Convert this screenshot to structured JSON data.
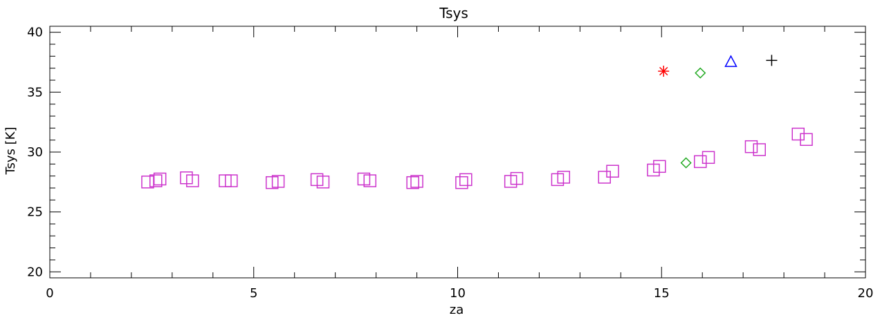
{
  "chart_data": {
    "type": "scatter",
    "title": "Tsys",
    "xlabel": "za",
    "ylabel": "Tsys [K]",
    "xlim": [
      0,
      20
    ],
    "ylim": [
      19.5,
      40.5
    ],
    "xticks": [
      0,
      5,
      10,
      15,
      20
    ],
    "xtick_labels": [
      "0",
      "5",
      "10",
      "15",
      "20"
    ],
    "yticks": [
      20,
      25,
      30,
      35,
      40
    ],
    "ytick_labels": [
      "20",
      "25",
      "30",
      "35",
      "40"
    ],
    "grid": false,
    "series": [
      {
        "marker": "square",
        "color": "#cc33cc",
        "x": [
          2.4,
          2.6,
          2.7,
          3.35,
          3.5,
          4.3,
          4.45,
          5.45,
          5.6,
          6.55,
          6.7,
          7.7,
          7.85,
          8.9,
          9.0,
          10.1,
          10.2,
          11.3,
          11.45,
          12.45,
          12.6,
          13.6,
          13.8,
          14.8,
          14.95,
          15.95,
          16.15,
          17.2,
          17.4,
          18.35,
          18.55
        ],
        "y": [
          27.5,
          27.6,
          27.75,
          27.85,
          27.6,
          27.6,
          27.6,
          27.45,
          27.55,
          27.7,
          27.5,
          27.75,
          27.6,
          27.45,
          27.55,
          27.45,
          27.7,
          27.55,
          27.8,
          27.7,
          27.9,
          27.9,
          28.4,
          28.5,
          28.8,
          29.2,
          29.55,
          30.45,
          30.2,
          31.5,
          31.05
        ]
      },
      {
        "marker": "diamond",
        "color": "#22aa22",
        "x": [
          15.6,
          15.95
        ],
        "y": [
          29.1,
          36.6
        ]
      },
      {
        "marker": "asterisk",
        "color": "#ff0000",
        "x": [
          15.05
        ],
        "y": [
          36.75
        ]
      },
      {
        "marker": "triangle",
        "color": "#0000ff",
        "x": [
          16.7
        ],
        "y": [
          37.55
        ]
      },
      {
        "marker": "plus",
        "color": "#000000",
        "x": [
          17.7
        ],
        "y": [
          37.65
        ]
      }
    ]
  }
}
